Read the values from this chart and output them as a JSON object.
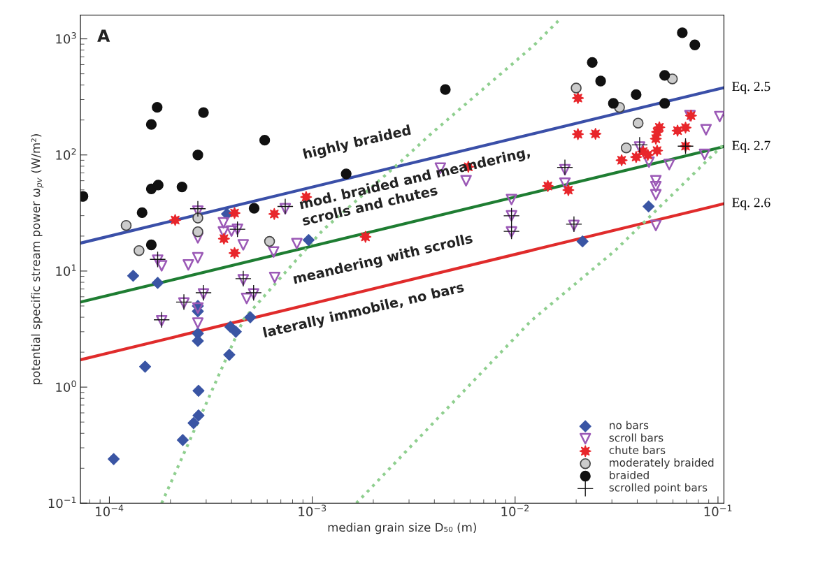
{
  "chart_data": {
    "type": "scatter",
    "xlabel": "median grain size D₅₀ (m)",
    "ylabel": "potential specific stream power ω$_{pv}$ (W/m²)",
    "log": "xy",
    "grid": false,
    "legend": "bottom right",
    "xlim": [
      7.2e-05,
      0.107
    ],
    "ylim": [
      0.1,
      1600
    ],
    "xticks": [
      {
        "value": 0.0001,
        "label": "10$^{−4}$"
      },
      {
        "value": 0.001,
        "label": "10$^{−3}$"
      },
      {
        "value": 0.01,
        "label": "10$^{−2}$"
      },
      {
        "value": 0.1,
        "label": "10$^{−1}$"
      }
    ],
    "yticks": [
      {
        "value": 0.1,
        "label": "10$^{−1}$"
      },
      {
        "value": 1,
        "label": "10$^{0}$"
      },
      {
        "value": 10,
        "label": "10$^{1}$"
      },
      {
        "value": 100,
        "label": "10$^{2}$"
      },
      {
        "value": 1000,
        "label": "10$^{3}$"
      }
    ],
    "annotations": [
      "A",
      "highly braided",
      "mod. braided and meandering,",
      "scrolls and chutes",
      "meandering with scrolls",
      "laterally immobile, no bars"
    ],
    "series": [
      {
        "name": "no bars",
        "marker": "diamond",
        "color": "#3a55a4",
        "x": [
          0.000131,
          0.000173,
          0.000273,
          0.000273,
          0.000273,
          0.000273,
          0.000395,
          0.00042,
          0.000495,
          0.00039,
          0.00015,
          0.000275,
          0.000275,
          0.00026,
          0.00023,
          0.000105,
          0.00038,
          0.00096,
          0.0215,
          0.0455
        ],
        "values": [
          9.1,
          7.9,
          5.0,
          4.5,
          2.9,
          2.5,
          3.3,
          3.0,
          4.0,
          1.9,
          1.5,
          0.93,
          0.57,
          0.49,
          0.35,
          0.24,
          31,
          18.5,
          18,
          36
        ]
      },
      {
        "name": "scroll bars",
        "marker": "triangle",
        "color": "#9b59b6",
        "x": [
          0.000273,
          0.000273,
          0.000365,
          0.000365,
          0.0004,
          0.000428,
          0.000457,
          0.000736,
          0.00084,
          0.000645,
          0.000173,
          0.000181,
          0.000245,
          0.000273,
          0.000457,
          0.000653,
          0.000291,
          0.000233,
          0.000475,
          0.000514,
          0.000181,
          0.000273,
          0.000273,
          0.00428,
          0.00573,
          0.0096,
          0.0096,
          0.0096,
          0.0176,
          0.0176,
          0.0195,
          0.0411,
          0.0457,
          0.0575,
          0.0494,
          0.0494,
          0.0494,
          0.0494,
          0.0728,
          0.0873,
          0.102,
          0.0859
        ],
        "values": [
          32.8,
          19.3,
          26,
          21.7,
          22.1,
          22.9,
          16.8,
          34.4,
          17.2,
          14.6,
          12.4,
          11.1,
          11.3,
          13,
          8.4,
          8.8,
          6.35,
          5.3,
          5.8,
          6.35,
          3.73,
          3.56,
          4.8,
          77,
          60,
          41.3,
          29.9,
          21.7,
          74.7,
          57.2,
          24.7,
          117,
          86.7,
          82.6,
          60,
          53.3,
          45.4,
          24.7,
          218,
          165,
          214,
          101
        ]
      },
      {
        "name": "chute bars",
        "marker": "star",
        "color": "#e8262b",
        "x": [
          0.000211,
          0.000414,
          0.00065,
          0.000933,
          0.000367,
          0.000414,
          0.00588,
          0.00183,
          0.0204,
          0.0204,
          0.0249,
          0.0145,
          0.0183,
          0.0335,
          0.0395,
          0.0428,
          0.0451,
          0.0501,
          0.0494,
          0.0501,
          0.0514,
          0.0632,
          0.0692,
          0.0736,
          0.0692
        ],
        "values": [
          27.5,
          31.6,
          31,
          43.4,
          19,
          14.3,
          79,
          19.7,
          309,
          151,
          152,
          54,
          49.8,
          90,
          96,
          107,
          100,
          109,
          138,
          158,
          173,
          162,
          172,
          218,
          119
        ]
      },
      {
        "name": "moderately braided",
        "marker": "circle",
        "color": "#cccccc",
        "x": [
          0.000121,
          0.00014,
          0.000273,
          0.000273,
          0.000616,
          0.02,
          0.0327,
          0.0596,
          0.0404,
          0.0353
        ],
        "values": [
          24.7,
          15,
          28.6,
          21.8,
          18,
          377,
          257,
          452,
          188,
          115
        ]
      },
      {
        "name": "braided",
        "marker": "circle",
        "color": "#111111",
        "x": [
          0.000172,
          0.000161,
          0.000291,
          0.000583,
          0.000273,
          0.000161,
          0.000174,
          0.000228,
          7.41e-05,
          0.000145,
          0.000517,
          0.000161,
          0.00453,
          0.00147,
          0.024,
          0.0264,
          0.0305,
          0.0395,
          0.0546,
          0.0546,
          0.0667,
          0.0769
        ],
        "values": [
          257,
          183,
          232,
          134,
          100,
          51,
          55,
          53,
          44,
          31.8,
          34.7,
          16.8,
          366,
          68.7,
          627,
          433,
          278,
          331,
          484,
          278,
          1128,
          887
        ]
      },
      {
        "name": "scrolled point bars",
        "marker": "cross",
        "color": "#111111",
        "x": [
          0.000273,
          0.000428,
          0.000736,
          0.000173,
          0.000291,
          0.000233,
          0.000514,
          0.000181,
          0.000457,
          0.0096,
          0.0096,
          0.0176,
          0.0195,
          0.0411,
          0.0692
        ],
        "values": [
          34.4,
          22.9,
          36,
          12.6,
          6.5,
          5.4,
          6.5,
          3.8,
          8.6,
          29.9,
          22,
          78,
          25.3,
          122,
          119
        ]
      },
      {
        "name": "Eq. 2.5",
        "type": "line",
        "line_style": "solid",
        "color": "#3a4fa8",
        "x": [
          7.2e-05,
          0.107
        ],
        "values": [
          17.4,
          380
        ]
      },
      {
        "name": "Eq. 2.7",
        "type": "line",
        "line_style": "solid",
        "color": "#1e7d32",
        "x": [
          7.2e-05,
          0.107
        ],
        "values": [
          5.4,
          118
        ]
      },
      {
        "name": "Eq. 2.6",
        "type": "line",
        "line_style": "solid",
        "color": "#e02b2b",
        "x": [
          7.2e-05,
          0.107
        ],
        "values": [
          1.72,
          38
        ]
      },
      {
        "type": "line",
        "line_style": "dotted",
        "color": "#8fcf8f",
        "x": [
          0.000181,
          0.000288,
          0.000459,
          0.000873,
          0.00113,
          0.00272,
          0.00385,
          0.0123,
          0.0165
        ],
        "values": [
          0.1,
          0.615,
          3.84,
          13.6,
          22.6,
          87,
          152,
          870,
          1455
        ]
      },
      {
        "type": "line",
        "line_style": "dotted",
        "color": "#8fcf8f",
        "x": [
          0.00165,
          0.012,
          0.0311,
          0.105
        ],
        "values": [
          0.1,
          3.73,
          15,
          120
        ]
      }
    ]
  }
}
